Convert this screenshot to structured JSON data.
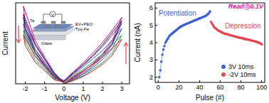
{
  "chart_data": [
    {
      "type": "line",
      "x_label": "Voltage (V)",
      "y_label": "Current",
      "xlim": [
        -2.5,
        3.4
      ],
      "ylim": [
        0,
        10
      ],
      "xticks": [
        -2,
        -1,
        0,
        1,
        2,
        3
      ],
      "tick_labels": "x",
      "annotations": [
        "Ta",
        "EV+PEO",
        "Tpy-Fe",
        "Glass",
        "V"
      ],
      "series": [
        {
          "color": "#e6007e",
          "x": [
            0,
            0.5,
            1,
            1.5,
            2,
            2.5,
            3,
            2.5,
            2,
            1.5,
            1,
            0.5,
            0,
            -0.5,
            -1,
            -1.5,
            -2,
            -2.1,
            -1.5,
            -1,
            -0.5,
            0
          ],
          "values": [
            0,
            0.7,
            1.5,
            2.5,
            3.7,
            5.3,
            8.2,
            6.6,
            5.1,
            3.8,
            2.6,
            1.5,
            0.4,
            1.0,
            2.5,
            4.3,
            7.4,
            9.6,
            5.4,
            3.3,
            1.4,
            0.1
          ]
        },
        {
          "color": "#7030a0",
          "x": [
            0,
            0.5,
            1,
            1.5,
            2,
            2.5,
            3,
            2.5,
            2,
            1.5,
            1,
            0.5,
            0,
            -0.5,
            -1,
            -1.5,
            -2,
            -2.1,
            -1.5,
            -1,
            -0.5,
            0
          ],
          "values": [
            0,
            0.6,
            1.3,
            2.2,
            3.3,
            4.8,
            7.5,
            6.0,
            4.6,
            3.4,
            2.3,
            1.3,
            0.3,
            0.8,
            2.2,
            3.8,
            6.5,
            8.2,
            4.8,
            3.0,
            1.2,
            0.1
          ]
        },
        {
          "color": "#3050c0",
          "x": [
            0,
            0.5,
            1,
            1.5,
            2,
            2.5,
            3,
            2.5,
            2,
            1.5,
            1,
            0.5,
            0,
            -0.5,
            -1,
            -1.5,
            -2,
            -2.1,
            -1.5,
            -1,
            -0.5,
            0
          ],
          "values": [
            0,
            0.5,
            1.2,
            2.0,
            3.0,
            4.3,
            6.8,
            5.4,
            4.1,
            3.1,
            2.1,
            1.2,
            0.3,
            0.7,
            2.0,
            3.4,
            5.9,
            7.4,
            4.3,
            2.7,
            1.1,
            0.1
          ]
        },
        {
          "color": "#20a040",
          "x": [
            0,
            0.5,
            1,
            1.5,
            2,
            2.5,
            3,
            2.5,
            2,
            1.5,
            1,
            0.5,
            0,
            -0.5,
            -1,
            -1.5,
            -2,
            -2.1,
            -1.5,
            -1,
            -0.5,
            0
          ],
          "values": [
            0,
            0.5,
            1.0,
            1.8,
            2.6,
            3.8,
            6.0,
            4.8,
            3.7,
            2.7,
            1.8,
            1.0,
            0.2,
            0.6,
            1.8,
            3.0,
            5.2,
            6.6,
            3.8,
            2.4,
            1.0,
            0.1
          ]
        },
        {
          "color": "#102060",
          "x": [
            0,
            0.5,
            1,
            1.5,
            2,
            2.5,
            3,
            2.5,
            2,
            1.5,
            1,
            0.5,
            0,
            -0.5,
            -1,
            -1.5,
            -2,
            -2.1,
            -1.5,
            -1,
            -0.5,
            0
          ],
          "values": [
            0,
            0.8,
            1.6,
            2.4,
            3.5,
            5.0,
            7.8,
            6.3,
            4.8,
            3.5,
            2.4,
            1.4,
            0.3,
            0.9,
            2.3,
            4.0,
            6.8,
            8.6,
            5.0,
            3.1,
            1.3,
            0.1
          ]
        },
        {
          "color": "#d02020",
          "x": [
            0,
            0.5,
            1,
            1.5,
            2,
            2.5,
            3,
            2.5,
            2,
            1.5,
            1,
            0.5,
            0,
            -0.5,
            -1,
            -1.5,
            -2,
            -2.1,
            -1.5,
            -1,
            -0.5,
            0
          ],
          "values": [
            0,
            0.4,
            0.9,
            1.6,
            2.4,
            3.5,
            5.5,
            4.4,
            3.3,
            2.4,
            1.6,
            0.9,
            0.2,
            0.5,
            1.6,
            2.7,
            4.7,
            6.0,
            3.5,
            2.2,
            0.9,
            0.1
          ]
        }
      ]
    },
    {
      "type": "line",
      "x_label": "Pulse (#)",
      "y_label": "Current (nA)",
      "xlim": [
        -3,
        103
      ],
      "ylim": [
        1.7,
        6.3
      ],
      "xticks": [
        0,
        20,
        40,
        60,
        80,
        100
      ],
      "yticks": [
        2,
        3,
        4,
        5,
        6
      ],
      "legend": "lower right",
      "annotations": [
        "Potentiation",
        "Depression",
        "Read@0.1V"
      ],
      "series": [
        {
          "name": "3V 10ms",
          "color": "#3a5fd9",
          "marker": "circle",
          "x": [
            1,
            2,
            3,
            4,
            5,
            6,
            7,
            8,
            9,
            10,
            11,
            12,
            13,
            14,
            15,
            16,
            17,
            18,
            19,
            20,
            21,
            22,
            23,
            24,
            25,
            26,
            27,
            28,
            29,
            30,
            31,
            32,
            33,
            34,
            35,
            36,
            37,
            38,
            39,
            40,
            41,
            42,
            43,
            44,
            45,
            46,
            47,
            48,
            49,
            50
          ],
          "values": [
            2.0,
            2.4,
            2.9,
            3.3,
            3.6,
            3.8,
            4.0,
            4.1,
            4.2,
            4.3,
            4.4,
            4.45,
            4.5,
            4.55,
            4.6,
            4.65,
            4.7,
            4.75,
            4.8,
            4.85,
            4.9,
            4.93,
            4.95,
            5.0,
            5.02,
            5.05,
            5.08,
            5.1,
            5.12,
            5.15,
            5.18,
            5.2,
            5.22,
            5.25,
            5.28,
            5.3,
            5.32,
            5.35,
            5.38,
            5.4,
            5.42,
            5.45,
            5.48,
            5.5,
            5.52,
            5.55,
            5.6,
            5.65,
            5.7,
            5.8
          ]
        },
        {
          "name": "-2V 10ms",
          "color": "#e8454f",
          "marker": "circle",
          "x": [
            51,
            52,
            53,
            54,
            55,
            56,
            57,
            58,
            59,
            60,
            61,
            62,
            63,
            64,
            65,
            66,
            67,
            68,
            69,
            70,
            71,
            72,
            73,
            74,
            75,
            76,
            77,
            78,
            79,
            80,
            81,
            82,
            83,
            84,
            85,
            86,
            87,
            88,
            89,
            90,
            91,
            92,
            93,
            94,
            95,
            96,
            97,
            98,
            99,
            100
          ],
          "values": [
            5.2,
            5.1,
            5.0,
            4.9,
            4.85,
            4.8,
            4.75,
            4.7,
            4.68,
            4.65,
            4.6,
            4.58,
            4.55,
            4.52,
            4.5,
            4.5,
            4.48,
            4.45,
            4.45,
            4.42,
            4.4,
            4.4,
            4.38,
            4.35,
            4.35,
            4.33,
            4.3,
            4.3,
            4.28,
            4.28,
            4.25,
            4.25,
            4.22,
            4.2,
            4.2,
            4.18,
            4.18,
            4.15,
            4.15,
            4.12,
            4.1,
            4.1,
            4.08,
            4.05,
            4.05,
            4.02,
            4.0,
            3.98,
            3.95,
            3.9
          ]
        }
      ]
    }
  ]
}
